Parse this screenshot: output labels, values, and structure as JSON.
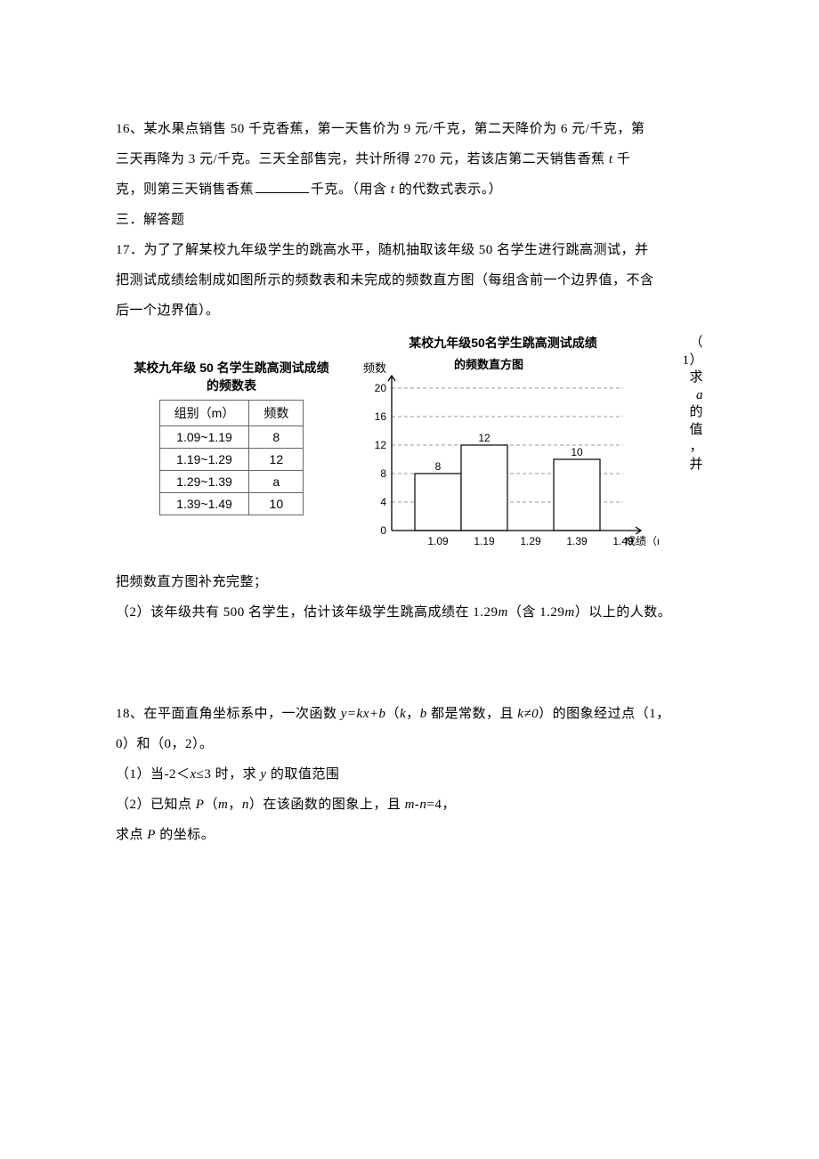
{
  "q16": {
    "text_l1": "16、某水果点销售 50 千克香蕉，第一天售价为 9 元/千克，第二天降价为 6 元/千克，第",
    "text_l2": "三天再降为 3 元/千克。三天全部售完，共计所得 270 元，若该店第二天销售香蕉 ",
    "text_l2_var": "t",
    "text_l2_end": " 千",
    "text_l3a": "克，则第三天销售香蕉",
    "text_l3b": "千克。（用含 ",
    "text_l3c": " 的代数式表示。）",
    "text_l3_var": "t"
  },
  "section3": "三．解答题",
  "q17": {
    "text_l1": "17．为了了解某校九年级学生的跳高水平，随机抽取该年级 50 名学生进行跳高测试，并",
    "text_l2": "把测试成绩绘制成如图所示的频数表和未完成的频数直方图（每组含前一个边界值，不含",
    "text_l3": "后一个边界值）。",
    "right_c1": "（",
    "right_c2": "1）",
    "right_c3": "求",
    "right_c4_var": "a",
    "right_c5": "的",
    "right_c6": "值",
    "right_c7": "，",
    "right_c8": "并",
    "cont": "把频数直方图补充完整；",
    "part2": "（2）该年级共有 500 名学生，估计该年级学生跳高成绩在 1.29",
    "part2_var": "m",
    "part2_mid": "（含 1.29",
    "part2_end": "）以上的人数。"
  },
  "table": {
    "title_l1": "某校九年级 50 名学生跳高测试成绩",
    "title_l2": "的频数表",
    "header_col1": "组别（m）",
    "header_col2": "频数",
    "rows": [
      [
        "1.09~1.19",
        "8"
      ],
      [
        "1.19~1.29",
        "12"
      ],
      [
        "1.29~1.39",
        "a"
      ],
      [
        "1.39~1.49",
        "10"
      ]
    ]
  },
  "chart": {
    "title_l1": "某校九年级50名学生跳高测试成绩",
    "title_l2": "的频数直方图",
    "y_label": "频数",
    "x_label": "成绩（m）",
    "y_ticks": [
      0,
      4,
      8,
      12,
      16,
      20
    ],
    "x_ticks": [
      "1.09",
      "1.19",
      "1.29",
      "1.39",
      "1.49"
    ],
    "bars": [
      {
        "label": "8",
        "value": 8,
        "filled": true
      },
      {
        "label": "12",
        "value": 12,
        "filled": true
      },
      {
        "label": "",
        "value": 0,
        "filled": false
      },
      {
        "label": "10",
        "value": 10,
        "filled": true
      }
    ],
    "axis_color": "#000000",
    "grid_color": "#999999",
    "bar_fill": "#ffffff",
    "bar_stroke": "#000000",
    "bg": "#ffffff"
  },
  "q18": {
    "text_l1a": "18、在平面直角坐标系中，一次函数 ",
    "eq1": "y=kx+b",
    "text_l1b": "（",
    "var_k": "k",
    "text_l1c": "，",
    "var_b": "b",
    "text_l1d": " 都是常数，且 ",
    "neq": "k≠0",
    "text_l1e": "）的图象经过点（1，",
    "text_l2": "0）和（0，2）。",
    "p1a": "（1）当-2＜",
    "p1var": "x",
    "p1b": "≤3 时，求 ",
    "p1vary": "y",
    "p1c": " 的取值范围",
    "p2a": "（2）已知点 ",
    "p2varP": "P",
    "p2b": "（",
    "p2varm": "m",
    "p2c": "，",
    "p2varn": "n",
    "p2d": "）在该函数的图象上，且 ",
    "p2eq": "m-n",
    "p2e": "=4，",
    "p3a": "求点 ",
    "p3varP": "P",
    "p3b": " 的坐标。"
  }
}
